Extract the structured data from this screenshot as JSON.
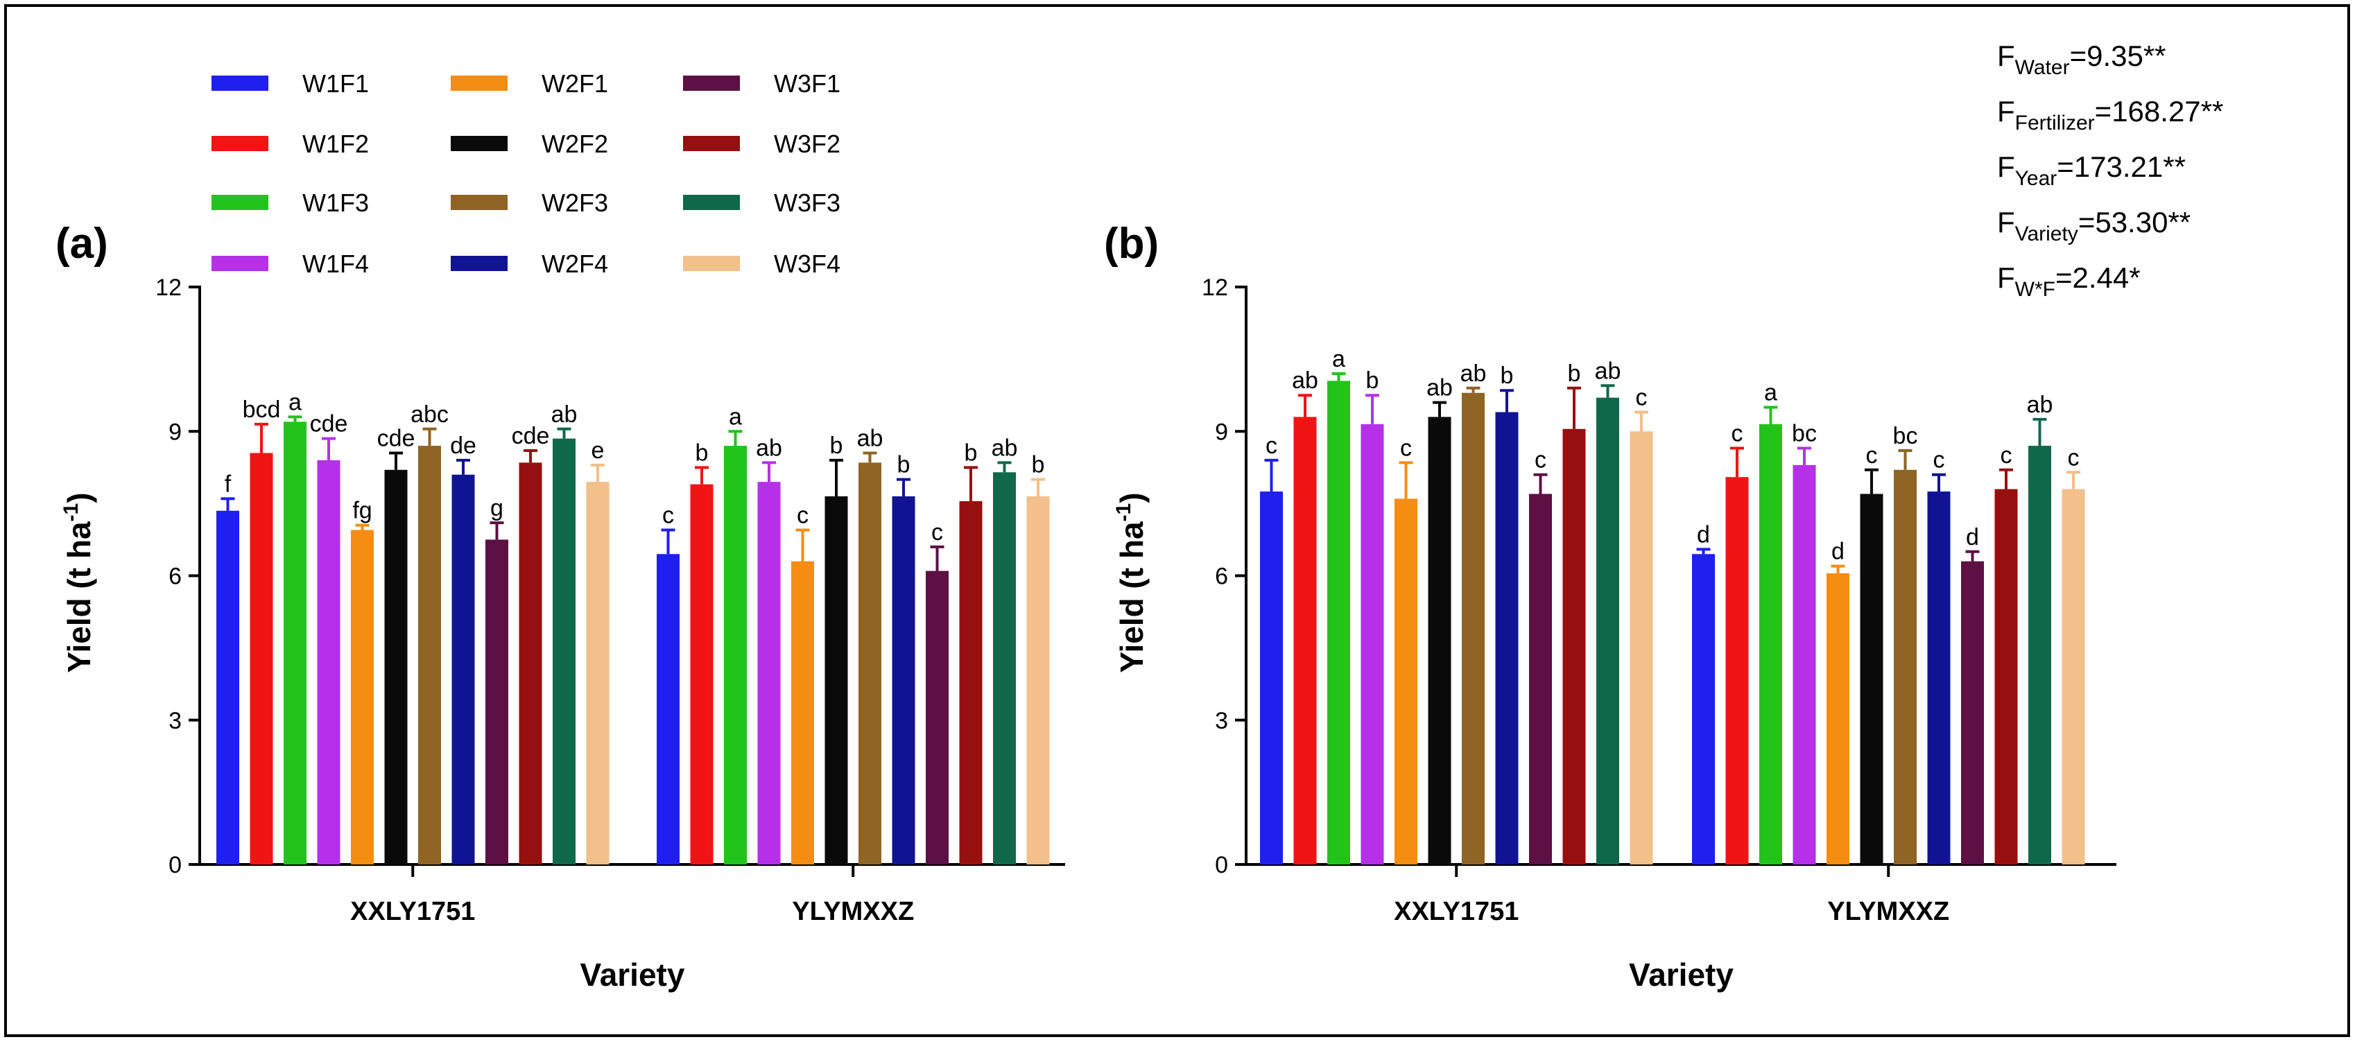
{
  "chart_data": [
    {
      "type": "bar",
      "panel": "(a)",
      "title": "",
      "xlabel": "Variety",
      "ylabel": "Yield (t ha-1)",
      "ylabel_main": "Yield (t ha",
      "ylabel_sup": "-1",
      "ylabel_end": ")",
      "ylim": [
        0,
        12
      ],
      "yticks": [
        "0",
        "3",
        "6",
        "9",
        "12"
      ],
      "categories": [
        "XXLY1751",
        "YLYMXXZ"
      ],
      "series": [
        {
          "name": "W1F1",
          "values": [
            7.35,
            6.45
          ],
          "errors": [
            0.25,
            0.5
          ],
          "letters": [
            "f",
            "c"
          ]
        },
        {
          "name": "W1F2",
          "values": [
            8.55,
            7.9
          ],
          "errors": [
            0.6,
            0.35
          ],
          "letters": [
            "bcd",
            "b"
          ]
        },
        {
          "name": "W1F3",
          "values": [
            9.2,
            8.7
          ],
          "errors": [
            0.1,
            0.3
          ],
          "letters": [
            "a",
            "a"
          ]
        },
        {
          "name": "W1F4",
          "values": [
            8.4,
            7.95
          ],
          "errors": [
            0.45,
            0.4
          ],
          "letters": [
            "cde",
            "ab"
          ]
        },
        {
          "name": "W2F1",
          "values": [
            6.95,
            6.3
          ],
          "errors": [
            0.1,
            0.65
          ],
          "letters": [
            "fg",
            "c"
          ]
        },
        {
          "name": "W2F2",
          "values": [
            8.2,
            7.65
          ],
          "errors": [
            0.35,
            0.75
          ],
          "letters": [
            "cde",
            "b"
          ]
        },
        {
          "name": "W2F3",
          "values": [
            8.7,
            8.35
          ],
          "errors": [
            0.35,
            0.2
          ],
          "letters": [
            "abc",
            "ab"
          ]
        },
        {
          "name": "W2F4",
          "values": [
            8.1,
            7.65
          ],
          "errors": [
            0.3,
            0.35
          ],
          "letters": [
            "de",
            "b"
          ]
        },
        {
          "name": "W3F1",
          "values": [
            6.75,
            6.1
          ],
          "errors": [
            0.35,
            0.5
          ],
          "letters": [
            "g",
            "c"
          ]
        },
        {
          "name": "W3F2",
          "values": [
            8.35,
            7.55
          ],
          "errors": [
            0.25,
            0.7
          ],
          "letters": [
            "cde",
            "b"
          ]
        },
        {
          "name": "W3F3",
          "values": [
            8.85,
            8.15
          ],
          "errors": [
            0.2,
            0.2
          ],
          "letters": [
            "ab",
            "ab"
          ]
        },
        {
          "name": "W3F4",
          "values": [
            7.95,
            7.65
          ],
          "errors": [
            0.35,
            0.35
          ],
          "letters": [
            "e",
            "b"
          ]
        }
      ]
    },
    {
      "type": "bar",
      "panel": "(b)",
      "title": "",
      "xlabel": "Variety",
      "ylabel": "Yield (t ha-1)",
      "ylabel_main": "Yield (t ha",
      "ylabel_sup": "-1",
      "ylabel_end": ")",
      "ylim": [
        0,
        12
      ],
      "yticks": [
        "0",
        "3",
        "6",
        "9",
        "12"
      ],
      "categories": [
        "XXLY1751",
        "YLYMXXZ"
      ],
      "series": [
        {
          "name": "W1F1",
          "values": [
            7.75,
            6.45
          ],
          "errors": [
            0.65,
            0.1
          ],
          "letters": [
            "c",
            "d"
          ]
        },
        {
          "name": "W1F2",
          "values": [
            9.3,
            8.05
          ],
          "errors": [
            0.45,
            0.6
          ],
          "letters": [
            "ab",
            "c"
          ]
        },
        {
          "name": "W1F3",
          "values": [
            10.05,
            9.15
          ],
          "errors": [
            0.15,
            0.35
          ],
          "letters": [
            "a",
            "a"
          ]
        },
        {
          "name": "W1F4",
          "values": [
            9.15,
            8.3
          ],
          "errors": [
            0.6,
            0.35
          ],
          "letters": [
            "b",
            "bc"
          ]
        },
        {
          "name": "W2F1",
          "values": [
            7.6,
            6.05
          ],
          "errors": [
            0.75,
            0.15
          ],
          "letters": [
            "c",
            "d"
          ]
        },
        {
          "name": "W2F2",
          "values": [
            9.3,
            7.7
          ],
          "errors": [
            0.3,
            0.5
          ],
          "letters": [
            "ab",
            "c"
          ]
        },
        {
          "name": "W2F3",
          "values": [
            9.8,
            8.2
          ],
          "errors": [
            0.1,
            0.4
          ],
          "letters": [
            "ab",
            "bc"
          ]
        },
        {
          "name": "W2F4",
          "values": [
            9.4,
            7.75
          ],
          "errors": [
            0.45,
            0.35
          ],
          "letters": [
            "b",
            "c"
          ]
        },
        {
          "name": "W3F1",
          "values": [
            7.7,
            6.3
          ],
          "errors": [
            0.4,
            0.2
          ],
          "letters": [
            "c",
            "d"
          ]
        },
        {
          "name": "W3F2",
          "values": [
            9.05,
            7.8
          ],
          "errors": [
            0.85,
            0.4
          ],
          "letters": [
            "b",
            "c"
          ]
        },
        {
          "name": "W3F3",
          "values": [
            9.7,
            8.7
          ],
          "errors": [
            0.25,
            0.55
          ],
          "letters": [
            "ab",
            "ab"
          ]
        },
        {
          "name": "W3F4",
          "values": [
            9.0,
            7.8
          ],
          "errors": [
            0.4,
            0.35
          ],
          "letters": [
            "c",
            "c"
          ]
        }
      ]
    }
  ],
  "legend": [
    {
      "label": "W1F1",
      "color": "#1f1ff0"
    },
    {
      "label": "W1F2",
      "color": "#f01414"
    },
    {
      "label": "W1F3",
      "color": "#22c41c"
    },
    {
      "label": "W1F4",
      "color": "#b530e8"
    },
    {
      "label": "W2F1",
      "color": "#f68d13"
    },
    {
      "label": "W2F2",
      "color": "#0a0a0a"
    },
    {
      "label": "W2F3",
      "color": "#8f6424"
    },
    {
      "label": "W2F4",
      "color": "#101494"
    },
    {
      "label": "W3F1",
      "color": "#5c1044"
    },
    {
      "label": "W3F2",
      "color": "#980f10"
    },
    {
      "label": "W3F3",
      "color": "#10694a"
    },
    {
      "label": "W3F4",
      "color": "#f3bf8a"
    }
  ],
  "stats": [
    {
      "base": "F",
      "sub": "Water",
      "value": "=9.35**"
    },
    {
      "base": "F",
      "sub": "Fertilizer",
      "value": "=168.27**"
    },
    {
      "base": "F",
      "sub": "Year",
      "value": "=173.21**"
    },
    {
      "base": "F",
      "sub": "Variety",
      "value": "=53.30**"
    },
    {
      "base": "F",
      "sub": "W*F",
      "value": "=2.44*"
    }
  ]
}
